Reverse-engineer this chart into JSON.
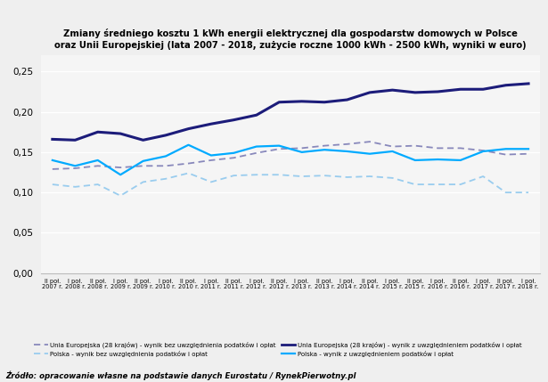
{
  "title_line1": "Zmiany średniego kosztu 1 kWh energii elektrycznej dla gospodarstw domowych w Polsce",
  "title_line2": "oraz Unii Europejskiej (lata 2007 - 2018, zużycie roczne 1000 kWh - 2500 kWh, wyniki w euro)",
  "source": "Źródło: opracowanie własne na podstawie danych Eurostatu / RynekPierwotny.pl",
  "xlabel_ticks": [
    "II poł.\n2007 r.",
    "I poł.\n2008 r.",
    "II poł.\n2008 r.",
    "I poł.\n2009 r.",
    "II poł.\n2009 r.",
    "I poł.\n2010 r.",
    "II poł.\n2010 r.",
    "I poł.\n2011 r.",
    "II poł.\n2011 r.",
    "I poł.\n2012 r.",
    "II poł.\n2012 r.",
    "I poł.\n2013 r.",
    "II poł.\n2013 r.",
    "I poł.\n2014 r.",
    "II poł.\n2014 r.",
    "I poł.\n2015 r.",
    "II poł.\n2015 r.",
    "I poł.\n2016 r.",
    "II poł.\n2016 r.",
    "I poł.\n2017 r.",
    "II poł.\n2017 r.",
    "I poł.\n2018 r."
  ],
  "eu_with_tax": [
    0.166,
    0.165,
    0.175,
    0.173,
    0.165,
    0.171,
    0.179,
    0.185,
    0.19,
    0.196,
    0.212,
    0.213,
    0.212,
    0.215,
    0.224,
    0.227,
    0.224,
    0.225,
    0.228,
    0.228,
    0.233,
    0.235
  ],
  "eu_without_tax": [
    0.129,
    0.13,
    0.133,
    0.131,
    0.133,
    0.133,
    0.136,
    0.14,
    0.143,
    0.149,
    0.154,
    0.155,
    0.158,
    0.16,
    0.163,
    0.157,
    0.158,
    0.155,
    0.155,
    0.152,
    0.147,
    0.148
  ],
  "pl_with_tax": [
    0.14,
    0.133,
    0.14,
    0.122,
    0.139,
    0.145,
    0.159,
    0.146,
    0.149,
    0.157,
    0.158,
    0.15,
    0.153,
    0.151,
    0.148,
    0.151,
    0.14,
    0.141,
    0.14,
    0.151,
    0.154,
    0.154
  ],
  "pl_without_tax": [
    0.11,
    0.107,
    0.11,
    0.096,
    0.113,
    0.117,
    0.124,
    0.113,
    0.121,
    0.122,
    0.122,
    0.12,
    0.121,
    0.119,
    0.12,
    0.118,
    0.11,
    0.11,
    0.11,
    0.12,
    0.1,
    0.1
  ],
  "color_eu_with_tax": "#1c1c7a",
  "color_eu_without_tax": "#8888bb",
  "color_pl_with_tax": "#00aaff",
  "color_pl_without_tax": "#99ccee",
  "ylim": [
    0.0,
    0.27
  ],
  "yticks": [
    0.0,
    0.05,
    0.1,
    0.15,
    0.2,
    0.25
  ],
  "bg_color": "#efefef",
  "plot_bg": "#f5f5f5",
  "legend_eu_without": "Unia Europejska (28 krajów) - wynik bez uwzględnienia podatków i opłat",
  "legend_eu_with": "Unia Europejska (28 krajów) - wynik z uwzględnieniem podatków i opłat",
  "legend_pl_without": "Polska - wynik bez uwzględnienia podatków i opłat",
  "legend_pl_with": "Polska - wynik z uwzględnieniem podatków i opłat"
}
